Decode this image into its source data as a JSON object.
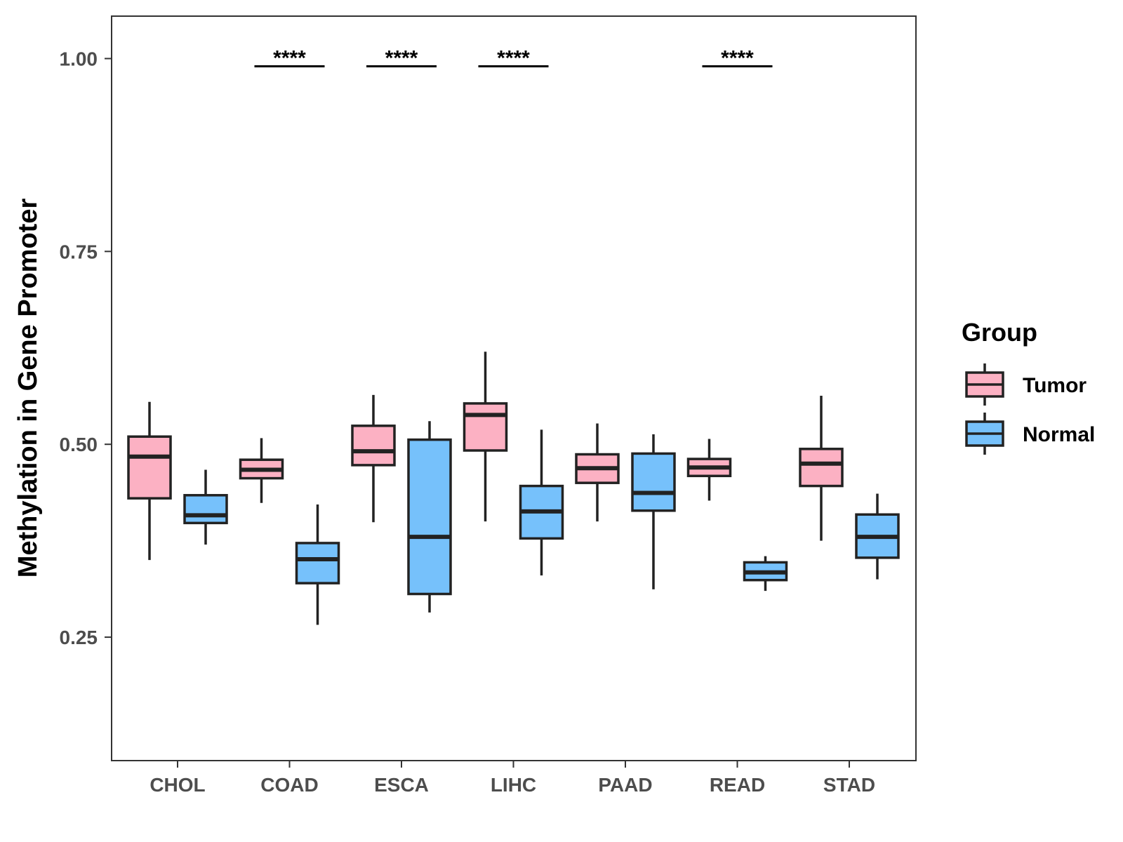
{
  "chart_data": {
    "type": "boxplot",
    "title": "",
    "xlabel": "",
    "ylabel": "Methylation in Gene Promoter",
    "ylim": [
      0.09,
      1.055
    ],
    "yticks": [
      {
        "value": 0.25,
        "label": "0.25"
      },
      {
        "value": 0.5,
        "label": "0.50"
      },
      {
        "value": 0.75,
        "label": "0.75"
      },
      {
        "value": 1.0,
        "label": "1.00"
      }
    ],
    "categories": [
      "CHOL",
      "COAD",
      "ESCA",
      "LIHC",
      "PAAD",
      "READ",
      "STAD"
    ],
    "grid": false,
    "legend": {
      "title": "Group",
      "position": "right",
      "entries": [
        {
          "name": "Tumor",
          "color": "#FCB1C3"
        },
        {
          "name": "Normal",
          "color": "#76C1FB"
        }
      ]
    },
    "series": [
      {
        "name": "Tumor",
        "color": "#FCB1C3",
        "boxes": [
          {
            "whisker_low": 0.35,
            "q1": 0.43,
            "median": 0.484,
            "q3": 0.51,
            "whisker_high": 0.555
          },
          {
            "whisker_low": 0.424,
            "q1": 0.456,
            "median": 0.467,
            "q3": 0.48,
            "whisker_high": 0.508
          },
          {
            "whisker_low": 0.399,
            "q1": 0.473,
            "median": 0.491,
            "q3": 0.524,
            "whisker_high": 0.564
          },
          {
            "whisker_low": 0.4,
            "q1": 0.492,
            "median": 0.538,
            "q3": 0.553,
            "whisker_high": 0.62
          },
          {
            "whisker_low": 0.4,
            "q1": 0.45,
            "median": 0.469,
            "q3": 0.487,
            "whisker_high": 0.527
          },
          {
            "whisker_low": 0.427,
            "q1": 0.459,
            "median": 0.47,
            "q3": 0.481,
            "whisker_high": 0.507
          },
          {
            "whisker_low": 0.375,
            "q1": 0.446,
            "median": 0.475,
            "q3": 0.494,
            "whisker_high": 0.563
          }
        ]
      },
      {
        "name": "Normal",
        "color": "#76C1FB",
        "boxes": [
          {
            "whisker_low": 0.37,
            "q1": 0.398,
            "median": 0.408,
            "q3": 0.434,
            "whisker_high": 0.467
          },
          {
            "whisker_low": 0.266,
            "q1": 0.32,
            "median": 0.351,
            "q3": 0.372,
            "whisker_high": 0.422
          },
          {
            "whisker_low": 0.282,
            "q1": 0.306,
            "median": 0.38,
            "q3": 0.506,
            "whisker_high": 0.53
          },
          {
            "whisker_low": 0.33,
            "q1": 0.378,
            "median": 0.413,
            "q3": 0.446,
            "whisker_high": 0.519
          },
          {
            "whisker_low": 0.312,
            "q1": 0.414,
            "median": 0.437,
            "q3": 0.488,
            "whisker_high": 0.513
          },
          {
            "whisker_low": 0.31,
            "q1": 0.324,
            "median": 0.334,
            "q3": 0.347,
            "whisker_high": 0.355
          },
          {
            "whisker_low": 0.325,
            "q1": 0.353,
            "median": 0.38,
            "q3": 0.409,
            "whisker_high": 0.436
          }
        ]
      }
    ],
    "annotations": [
      {
        "category": "COAD",
        "label": "****",
        "y": 0.99
      },
      {
        "category": "ESCA",
        "label": "****",
        "y": 0.99
      },
      {
        "category": "LIHC",
        "label": "****",
        "y": 0.99
      },
      {
        "category": "READ",
        "label": "****",
        "y": 0.99
      }
    ]
  }
}
